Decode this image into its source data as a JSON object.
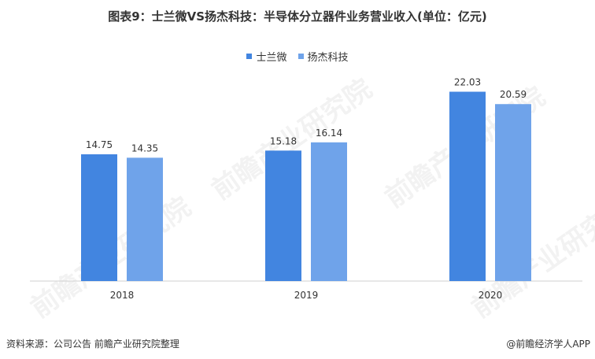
{
  "page_title": "图表9：士兰微VS扬杰科技：半导体分立器件业务营业收入(单位：亿元)",
  "footer": {
    "source": "资料来源：公司公告 前瞻产业研究院整理",
    "copyright": "@前瞻经济学人APP"
  },
  "watermark_text": "前瞻产业研究院",
  "colors": {
    "series1": "#4285e0",
    "series2": "#6fa3ea",
    "axis": "#d0d0d0"
  },
  "chart_data": {
    "type": "bar",
    "title": "图表9：士兰微VS扬杰科技：半导体分立器件业务营业收入(单位：亿元)",
    "categories": [
      "2018",
      "2019",
      "2020"
    ],
    "series": [
      {
        "name": "士兰微",
        "values": [
          14.75,
          15.18,
          22.03
        ]
      },
      {
        "name": "扬杰科技",
        "values": [
          14.35,
          16.14,
          20.59
        ]
      }
    ],
    "xlabel": "",
    "ylabel": "",
    "ylim": [
      0,
      24
    ],
    "grid": false,
    "legend_position": "top-center",
    "value_decimals": 2
  }
}
